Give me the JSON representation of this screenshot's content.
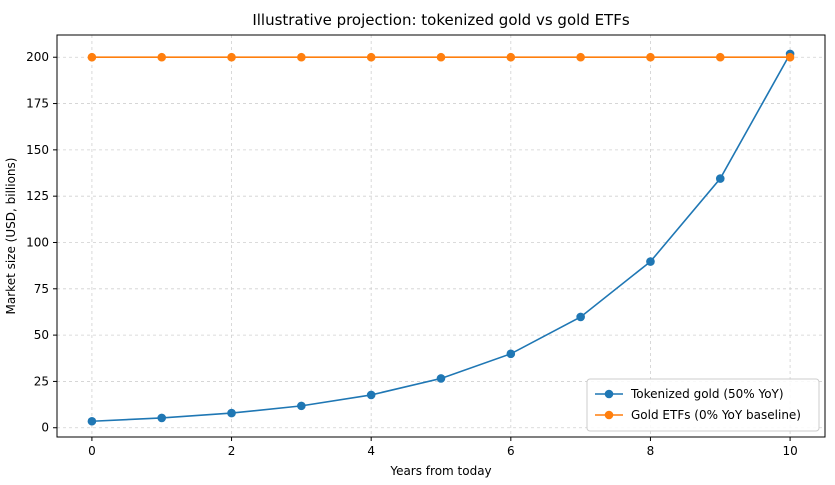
{
  "chart_data": {
    "type": "line",
    "title": "Illustrative projection: tokenized gold vs gold ETFs",
    "xlabel": "Years from today",
    "ylabel": "Market size (USD, billions)",
    "x": [
      0,
      1,
      2,
      3,
      4,
      5,
      6,
      7,
      8,
      9,
      10
    ],
    "xlim": [
      -0.5,
      10.5
    ],
    "ylim": [
      -5,
      212
    ],
    "xticks": [
      0,
      2,
      4,
      6,
      8,
      10
    ],
    "yticks": [
      0,
      25,
      50,
      75,
      100,
      125,
      150,
      175,
      200
    ],
    "grid": true,
    "legend_position": "bottom-right",
    "series": [
      {
        "name": "Tokenized gold (50% YoY)",
        "color": "#1f77b4",
        "marker": "circle",
        "values": [
          3.5,
          5.3,
          7.9,
          11.8,
          17.7,
          26.6,
          39.9,
          59.8,
          89.7,
          134.5,
          201.8
        ]
      },
      {
        "name": "Gold ETFs (0% YoY baseline)",
        "color": "#ff7f0e",
        "marker": "circle",
        "values": [
          200,
          200,
          200,
          200,
          200,
          200,
          200,
          200,
          200,
          200,
          200
        ]
      }
    ]
  }
}
